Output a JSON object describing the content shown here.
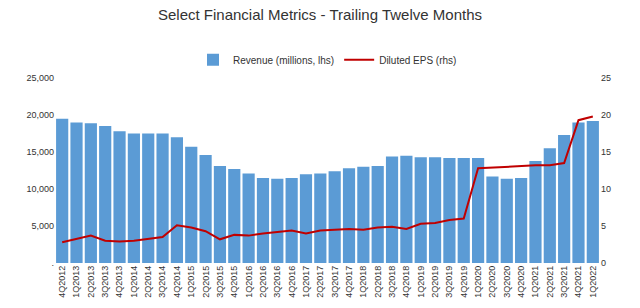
{
  "chart_data": {
    "type": "bar",
    "title": "Select Financial Metrics - Trailing Twelve Months",
    "categories": [
      "4Q2012",
      "1Q2013",
      "2Q2013",
      "3Q2013",
      "4Q2013",
      "1Q2014",
      "2Q2014",
      "3Q2014",
      "4Q2014",
      "1Q2015",
      "2Q2015",
      "3Q2015",
      "4Q2015",
      "1Q2016",
      "2Q2016",
      "3Q2016",
      "4Q2016",
      "1Q2017",
      "2Q2017",
      "3Q2017",
      "4Q2017",
      "1Q2018",
      "2Q2018",
      "3Q2018",
      "4Q2018",
      "1Q2019",
      "2Q2019",
      "3Q2019",
      "4Q2019",
      "1Q2020",
      "2Q2020",
      "3Q2020",
      "4Q2020",
      "1Q2021",
      "2Q2021",
      "3Q2021",
      "4Q2021",
      "1Q2022"
    ],
    "series": [
      {
        "name": "Revenue (millions, lhs)",
        "type": "bar",
        "color": "#5B9BD5",
        "values": [
          19500,
          19000,
          18900,
          18500,
          17800,
          17500,
          17500,
          17500,
          17000,
          15700,
          14600,
          13100,
          12700,
          12100,
          11500,
          11400,
          11500,
          12000,
          12100,
          12400,
          12800,
          13000,
          13100,
          14400,
          14500,
          14300,
          14300,
          14200,
          14200,
          14200,
          11700,
          11400,
          11500,
          13800,
          15500,
          17300,
          19000,
          19200
        ]
      },
      {
        "name": "Diluted EPS (rhs)",
        "type": "line",
        "color": "#C00000",
        "axis": "y2",
        "values": [
          2.8,
          3.2,
          3.7,
          3.0,
          2.9,
          3.0,
          3.2,
          3.5,
          5.1,
          4.8,
          4.3,
          3.2,
          3.8,
          3.7,
          4.0,
          4.2,
          4.4,
          4.0,
          4.4,
          4.5,
          4.6,
          4.5,
          4.8,
          4.9,
          4.6,
          5.3,
          5.4,
          5.8,
          6.0,
          12.8,
          12.9,
          13.0,
          13.2,
          13.2,
          13.2,
          13.5,
          19.3,
          19.8
        ]
      }
    ],
    "ylim": [
      0,
      25000
    ],
    "yticks": [
      {
        "value": 0,
        "label": "."
      },
      {
        "value": 5000,
        "label": "5,000"
      },
      {
        "value": 10000,
        "label": "10,000"
      },
      {
        "value": 15000,
        "label": "15,000"
      },
      {
        "value": 20000,
        "label": "20,000"
      },
      {
        "value": 25000,
        "label": "25,000"
      }
    ],
    "y2lim": [
      0,
      25
    ],
    "y2ticks": [
      0,
      5,
      10,
      15,
      20,
      25
    ],
    "grid": false,
    "legend": "top"
  }
}
